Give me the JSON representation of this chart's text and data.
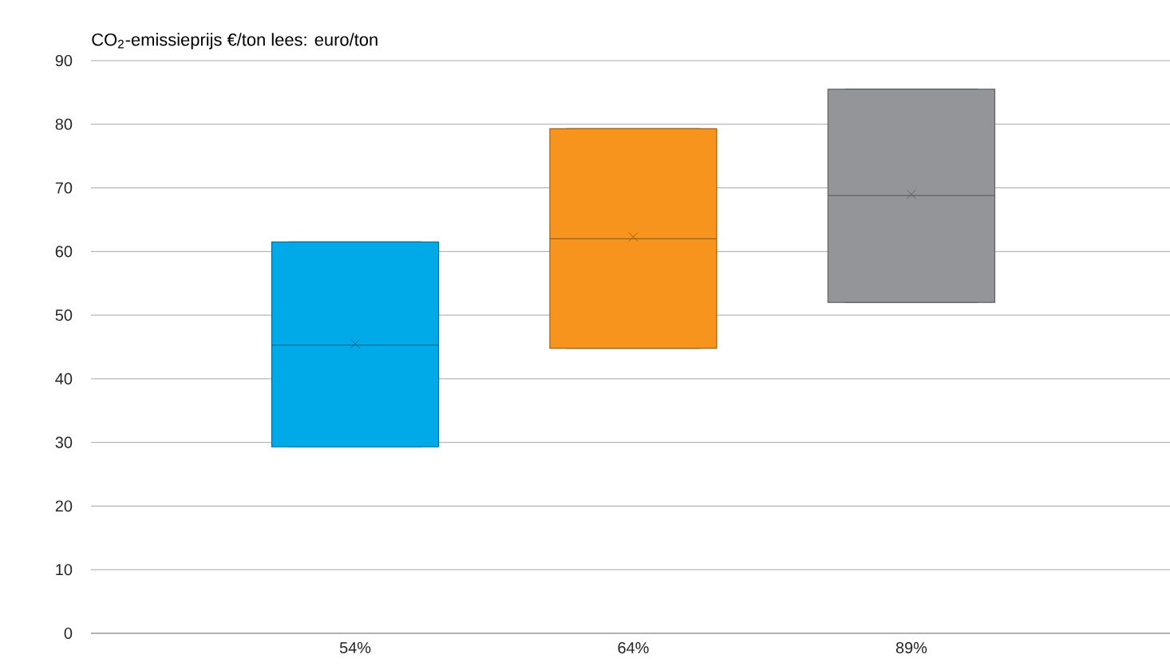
{
  "chart_data": {
    "type": "box",
    "title": "CO$_{2}$-emissieprijs €/ton lees: euro/ton",
    "categories": [
      "54%",
      "64%",
      "89%"
    ],
    "colors": [
      "#00a9e8",
      "#f7941d",
      "#939598"
    ],
    "boxes": [
      {
        "low": 29.3,
        "q1": 29.3,
        "median": 45.3,
        "q3": 61.5,
        "high": 61.5,
        "mean": 45.5
      },
      {
        "low": 44.8,
        "q1": 44.8,
        "median": 62,
        "q3": 79.3,
        "high": 79.3,
        "mean": 62.3
      },
      {
        "low": 52,
        "q1": 52,
        "median": 68.8,
        "q3": 85.5,
        "high": 85.5,
        "mean": 69
      }
    ],
    "ylim": [
      0,
      90
    ],
    "yticks": [
      0,
      10,
      20,
      30,
      40,
      50,
      60,
      70,
      80,
      90
    ],
    "grid": "y"
  }
}
